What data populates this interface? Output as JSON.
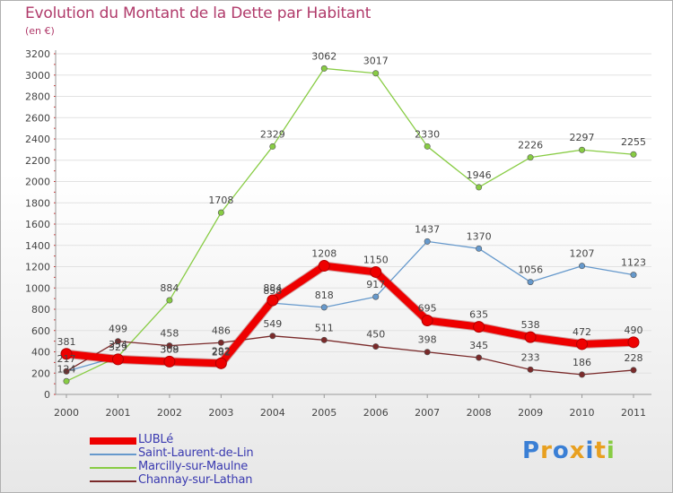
{
  "title": "Evolution du Montant de la Dette par Habitant",
  "subtitle": "(en €)",
  "brand": "Proxiti",
  "chart_data": {
    "type": "line",
    "categories": [
      "2000",
      "2001",
      "2002",
      "2003",
      "2004",
      "2005",
      "2006",
      "2007",
      "2008",
      "2009",
      "2010",
      "2011"
    ],
    "ylim": [
      0,
      3200
    ],
    "yticks": [
      0,
      200,
      400,
      600,
      800,
      1000,
      1200,
      1400,
      1600,
      1800,
      2000,
      2200,
      2400,
      2600,
      2800,
      3000,
      3200
    ],
    "grid": true,
    "legend_position": "bottom-left",
    "series": [
      {
        "name": "LUBLé",
        "color": "#ee0000",
        "values": [
          381,
          329,
          308,
          292,
          884,
          1208,
          1150,
          695,
          635,
          538,
          472,
          490
        ]
      },
      {
        "name": "Saint-Laurent-de-Lin",
        "color": "#6699cc",
        "values": [
          217,
          354,
          309,
          282,
          858,
          818,
          917,
          1437,
          1370,
          1056,
          1207,
          1123
        ]
      },
      {
        "name": "Marcilly-sur-Maulne",
        "color": "#88cc44",
        "values": [
          124,
          354,
          884,
          1708,
          2329,
          3062,
          3017,
          2330,
          1946,
          2226,
          2297,
          2255
        ]
      },
      {
        "name": "Channay-sur-Lathan",
        "color": "#7a2a2a",
        "values": [
          217,
          499,
          458,
          486,
          549,
          511,
          450,
          398,
          345,
          233,
          186,
          228
        ]
      }
    ],
    "data_labels": [
      [
        "381",
        "329",
        "308",
        "292",
        "884",
        "1208",
        "1150",
        "695",
        "635",
        "538",
        "472",
        "490"
      ],
      [
        "217",
        "",
        "309",
        "282",
        "858",
        "818",
        "917",
        "1437",
        "1370",
        "1056",
        "1207",
        "1123"
      ],
      [
        "124",
        "354",
        "884",
        "1708",
        "2329",
        "3062",
        "3017",
        "2330",
        "1946",
        "2226",
        "2297",
        "2255"
      ],
      [
        "",
        "499",
        "458",
        "486",
        "549",
        "511",
        "450",
        "398",
        "345",
        "233",
        "186",
        "228"
      ]
    ]
  }
}
